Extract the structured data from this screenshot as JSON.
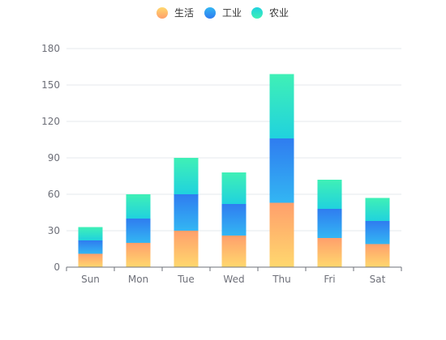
{
  "chart_data": {
    "type": "bar",
    "stacked": true,
    "categories": [
      "Sun",
      "Mon",
      "Tue",
      "Wed",
      "Thu",
      "Fri",
      "Sat"
    ],
    "series": [
      {
        "name": "生活",
        "values": [
          11,
          20,
          30,
          26,
          53,
          24,
          19
        ],
        "color_top": "#ff9f6b",
        "color_bottom": "#ffd86e"
      },
      {
        "name": "工业",
        "values": [
          11,
          20,
          30,
          26,
          53,
          24,
          19
        ],
        "color_top": "#2f7cf0",
        "color_bottom": "#33b6f3"
      },
      {
        "name": "农业",
        "values": [
          11,
          20,
          30,
          26,
          53,
          24,
          19
        ],
        "color_top": "#3ff0b6",
        "color_bottom": "#20d2de"
      }
    ],
    "ylim": [
      0,
      180
    ],
    "yticks": [
      0,
      30,
      60,
      90,
      120,
      150,
      180
    ],
    "grid": true,
    "legend": "top-center"
  }
}
